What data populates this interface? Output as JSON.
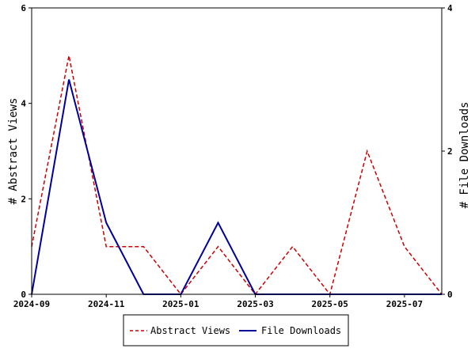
{
  "chart_data": {
    "type": "line",
    "x": [
      "2024-09",
      "2024-10",
      "2024-11",
      "2024-12",
      "2025-01",
      "2025-02",
      "2025-03",
      "2025-04",
      "2025-05",
      "2025-06",
      "2025-07",
      "2025-08"
    ],
    "x_tick_labels": [
      "2024-09",
      "2024-11",
      "2025-01",
      "2025-03",
      "2025-05",
      "2025-07"
    ],
    "ylabel_left": "# Abstract Views",
    "ylabel_right": "# File Downloads",
    "ylim_left": [
      0,
      6
    ],
    "ylim_right": [
      0,
      4
    ],
    "yticks_left": [
      "0",
      "2",
      "4",
      "6"
    ],
    "yticks_right": [
      "0",
      "2",
      "4"
    ],
    "series": [
      {
        "name": "Abstract Views",
        "axis": "left",
        "color": "#cc0000",
        "style": "dashed",
        "values": [
          1,
          5,
          1,
          1,
          0,
          1,
          0,
          1,
          0,
          3,
          1,
          0
        ]
      },
      {
        "name": "File Downloads",
        "axis": "right",
        "color": "#000099",
        "style": "solid",
        "values": [
          0,
          3,
          1,
          0,
          0,
          1,
          0,
          0,
          0,
          0,
          0,
          0
        ]
      }
    ],
    "legend_position": "bottom"
  }
}
